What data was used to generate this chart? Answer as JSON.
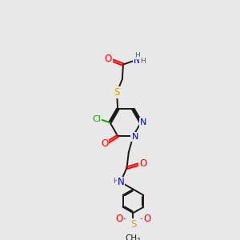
{
  "bg_color": "#e8e8e8",
  "bond_color": "#1a1a1a",
  "atom_colors": {
    "O": "#ff0000",
    "N": "#0000cc",
    "S": "#ccaa00",
    "Cl": "#00aa00",
    "H": "#336666",
    "C": "#1a1a1a"
  },
  "figsize": [
    3.0,
    3.0
  ],
  "dpi": 100
}
